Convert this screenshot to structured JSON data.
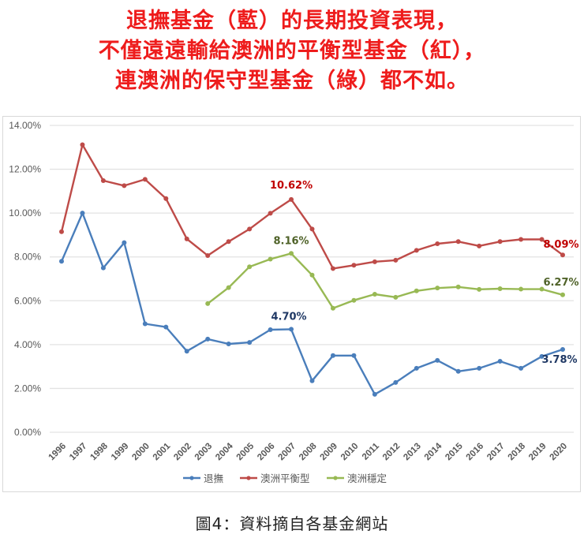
{
  "headline": {
    "line1": "退撫基金（藍）的長期投資表現，",
    "line2": "不僅遠遠輸給澳洲的平衡型基金（紅），",
    "line3": "連澳洲的保守型基金（綠）都不如。",
    "color": "#ee1c1c"
  },
  "caption": "圖4：資料摘自各基金網站",
  "chart_data": {
    "type": "line",
    "title": "",
    "xlabel": "",
    "ylabel": "",
    "ylim": [
      0,
      14
    ],
    "yticks": [
      "0.00%",
      "2.00%",
      "4.00%",
      "6.00%",
      "8.00%",
      "10.00%",
      "12.00%",
      "14.00%"
    ],
    "grid": true,
    "legend_position": "bottom",
    "categories": [
      "1996",
      "1997",
      "1998",
      "1999",
      "2000",
      "2001",
      "2002",
      "2003",
      "2004",
      "2005",
      "2006",
      "2007",
      "2008",
      "2009",
      "2010",
      "2011",
      "2012",
      "2013",
      "2014",
      "2015",
      "2016",
      "2017",
      "2018",
      "2019",
      "2020"
    ],
    "series": [
      {
        "name": "退撫",
        "color": "#4a7ebb",
        "label_color": "#1f3864",
        "values": [
          7.8,
          10.0,
          7.5,
          8.65,
          4.95,
          4.8,
          3.7,
          4.25,
          4.03,
          4.1,
          4.68,
          4.7,
          2.35,
          3.5,
          3.5,
          1.73,
          2.27,
          2.92,
          3.28,
          2.78,
          2.92,
          3.24,
          2.92,
          3.46,
          3.78
        ]
      },
      {
        "name": "澳洲平衡型",
        "color": "#be4b48",
        "label_color": "#c00000",
        "values": [
          9.15,
          13.12,
          11.48,
          11.25,
          11.54,
          10.66,
          8.82,
          8.06,
          8.7,
          9.27,
          9.99,
          10.62,
          9.27,
          7.47,
          7.62,
          7.78,
          7.85,
          8.3,
          8.6,
          8.7,
          8.5,
          8.7,
          8.8,
          8.8,
          8.09
        ]
      },
      {
        "name": "澳洲穩定",
        "color": "#98b954",
        "label_color": "#4f6228",
        "values": [
          null,
          null,
          null,
          null,
          null,
          null,
          null,
          5.87,
          6.6,
          7.55,
          7.9,
          8.16,
          7.17,
          5.66,
          6.02,
          6.3,
          6.16,
          6.45,
          6.58,
          6.63,
          6.52,
          6.55,
          6.53,
          6.53,
          6.27
        ]
      }
    ],
    "annotations": [
      {
        "text": "10.62%",
        "series": 1,
        "index": 11,
        "color": "#c00000"
      },
      {
        "text": "8.16%",
        "series": 2,
        "index": 11,
        "color": "#4f6228"
      },
      {
        "text": "4.70%",
        "series": 0,
        "index": 11,
        "color": "#1f3864"
      },
      {
        "text": "8.09%",
        "series": 1,
        "index": 24,
        "color": "#c00000"
      },
      {
        "text": "6.27%",
        "series": 2,
        "index": 24,
        "color": "#4f6228"
      },
      {
        "text": "3.78%",
        "series": 0,
        "index": 24,
        "color": "#1f3864"
      }
    ]
  }
}
